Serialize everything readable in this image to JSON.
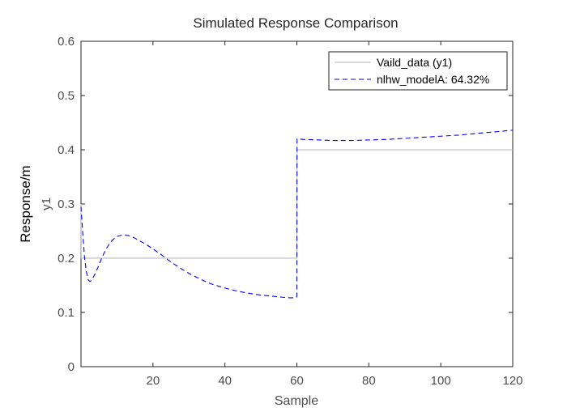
{
  "chart_data": {
    "type": "line",
    "title": "Simulated Response Comparison",
    "xlabel": "Sample",
    "ylabel_outer": "Response/m",
    "ylabel_inner": "y1",
    "xlim": [
      0,
      120
    ],
    "ylim": [
      0,
      0.6
    ],
    "xticks": [
      20,
      40,
      60,
      80,
      100,
      120
    ],
    "yticks": [
      0,
      0.1,
      0.2,
      0.3,
      0.4,
      0.5,
      0.6
    ],
    "xtick_labels": [
      "20",
      "40",
      "60",
      "80",
      "100",
      "120"
    ],
    "ytick_labels": [
      "0",
      "0.1",
      "0.2",
      "0.3",
      "0.4",
      "0.5",
      "0.6"
    ],
    "grid": false,
    "legend_position": "top-right",
    "series": [
      {
        "name": "Vaild_data (y1)",
        "color": "#b3b3b3",
        "style": "solid",
        "x": [
          0,
          0.05,
          60,
          60.05,
          120
        ],
        "y": [
          0.3,
          0.2,
          0.2,
          0.4,
          0.4
        ]
      },
      {
        "name": "nlhw_modelA: 64.32%",
        "color": "#0000ff",
        "style": "dashed",
        "x": [
          0,
          0.5,
          1,
          1.5,
          2,
          2.5,
          3,
          4,
          5,
          6,
          7,
          8,
          9,
          10,
          11,
          12,
          13,
          14,
          15,
          16,
          18,
          20,
          22,
          25,
          28,
          30,
          33,
          36,
          40,
          43,
          46,
          50,
          53,
          56,
          58,
          59,
          59.9,
          60,
          60.05,
          62,
          66,
          70,
          75,
          80,
          85,
          90,
          95,
          100,
          105,
          110,
          115,
          120
        ],
        "y": [
          0.295,
          0.245,
          0.2,
          0.175,
          0.16,
          0.157,
          0.16,
          0.172,
          0.188,
          0.204,
          0.217,
          0.228,
          0.235,
          0.24,
          0.242,
          0.243,
          0.242,
          0.24,
          0.237,
          0.233,
          0.226,
          0.217,
          0.208,
          0.193,
          0.18,
          0.172,
          0.162,
          0.153,
          0.145,
          0.14,
          0.136,
          0.132,
          0.13,
          0.128,
          0.127,
          0.127,
          0.128,
          0.13,
          0.42,
          0.419,
          0.418,
          0.417,
          0.417,
          0.418,
          0.419,
          0.421,
          0.423,
          0.425,
          0.427,
          0.43,
          0.433,
          0.436
        ]
      }
    ]
  }
}
